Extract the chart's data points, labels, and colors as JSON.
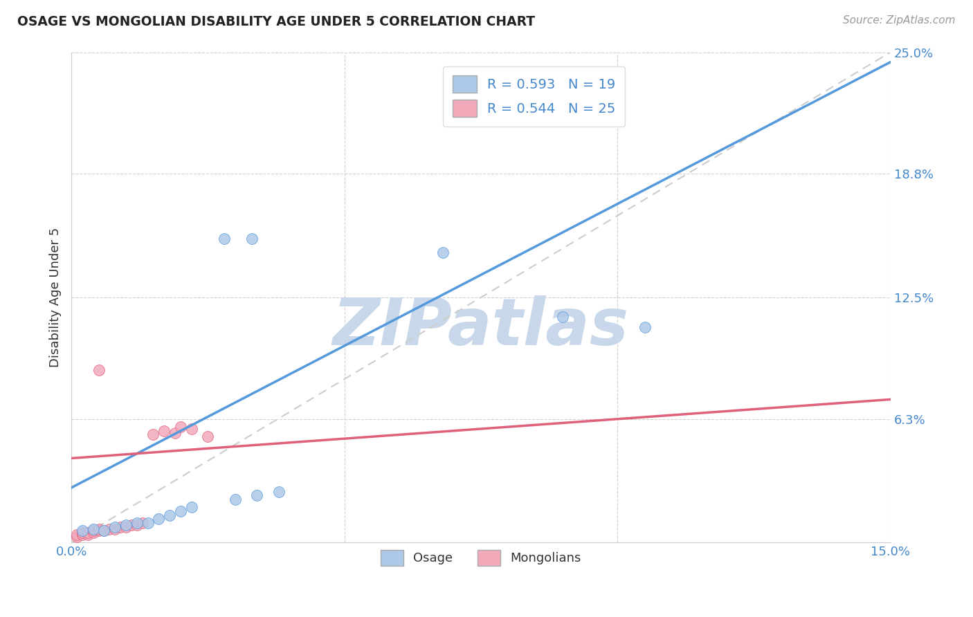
{
  "title": "OSAGE VS MONGOLIAN DISABILITY AGE UNDER 5 CORRELATION CHART",
  "source": "Source: ZipAtlas.com",
  "ylabel": "Disability Age Under 5",
  "xlim": [
    0.0,
    0.15
  ],
  "ylim": [
    0.0,
    0.25
  ],
  "xticks": [
    0.0,
    0.05,
    0.1,
    0.15
  ],
  "yticks": [
    0.0,
    0.063,
    0.125,
    0.188,
    0.25
  ],
  "xticklabels": [
    "0.0%",
    "",
    "",
    "15.0%"
  ],
  "yticklabels": [
    "",
    "6.3%",
    "12.5%",
    "18.8%",
    "25.0%"
  ],
  "osage_R": 0.593,
  "osage_N": 19,
  "mongolian_R": 0.544,
  "mongolian_N": 25,
  "osage_color": "#adc8e8",
  "mongolian_color": "#f2aabb",
  "osage_line_color": "#5599dd",
  "mongolian_line_color": "#e0607a",
  "diagonal_color": "#cccccc",
  "osage_pts": [
    [
      0.002,
      0.006
    ],
    [
      0.004,
      0.007
    ],
    [
      0.006,
      0.006
    ],
    [
      0.008,
      0.008
    ],
    [
      0.01,
      0.009
    ],
    [
      0.012,
      0.01
    ],
    [
      0.014,
      0.01
    ],
    [
      0.016,
      0.012
    ],
    [
      0.018,
      0.014
    ],
    [
      0.02,
      0.016
    ],
    [
      0.022,
      0.018
    ],
    [
      0.03,
      0.022
    ],
    [
      0.034,
      0.024
    ],
    [
      0.038,
      0.026
    ],
    [
      0.028,
      0.155
    ],
    [
      0.033,
      0.155
    ],
    [
      0.068,
      0.148
    ],
    [
      0.09,
      0.115
    ],
    [
      0.105,
      0.11
    ]
  ],
  "mongolian_pts": [
    [
      0.001,
      0.003
    ],
    [
      0.001,
      0.004
    ],
    [
      0.002,
      0.004
    ],
    [
      0.002,
      0.005
    ],
    [
      0.003,
      0.004
    ],
    [
      0.003,
      0.005
    ],
    [
      0.004,
      0.005
    ],
    [
      0.004,
      0.006
    ],
    [
      0.005,
      0.006
    ],
    [
      0.005,
      0.007
    ],
    [
      0.006,
      0.006
    ],
    [
      0.007,
      0.007
    ],
    [
      0.008,
      0.007
    ],
    [
      0.009,
      0.008
    ],
    [
      0.01,
      0.008
    ],
    [
      0.011,
      0.009
    ],
    [
      0.012,
      0.009
    ],
    [
      0.013,
      0.01
    ],
    [
      0.015,
      0.055
    ],
    [
      0.017,
      0.057
    ],
    [
      0.019,
      0.056
    ],
    [
      0.02,
      0.059
    ],
    [
      0.022,
      0.058
    ],
    [
      0.005,
      0.088
    ],
    [
      0.025,
      0.054
    ]
  ],
  "background_color": "#ffffff",
  "watermark": "ZIPatlas",
  "watermark_color": "#c8d8ea",
  "osage_line_pts": [
    [
      0.0,
      0.028
    ],
    [
      0.15,
      0.245
    ]
  ],
  "mongolian_line_pts": [
    [
      0.0,
      0.043
    ],
    [
      0.15,
      0.073
    ]
  ]
}
